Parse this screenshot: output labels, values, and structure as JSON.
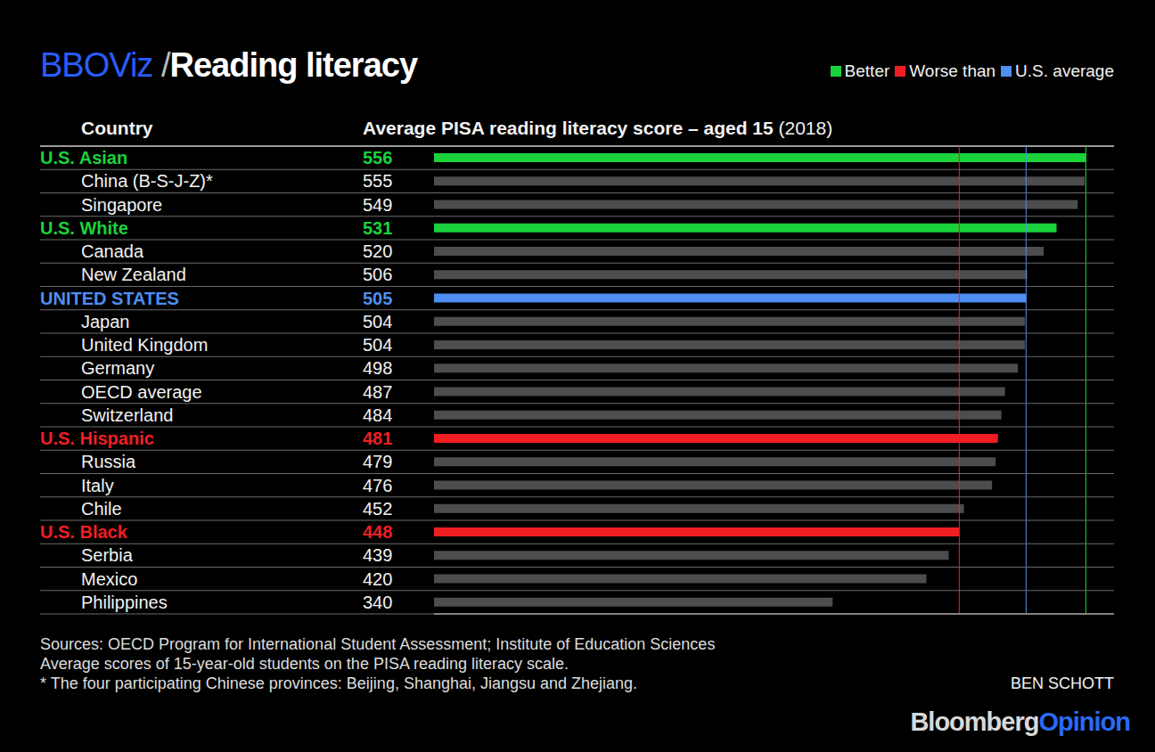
{
  "chart_data": {
    "type": "bar",
    "orientation": "horizontal",
    "brand": "BBOViz",
    "title_separator": "/",
    "title": "Reading literacy",
    "y_label": "Country",
    "x_label": "Average PISA reading literacy score – aged 15",
    "x_label_suffix": "(2018)",
    "legend": "upper right",
    "legend_entries": [
      {
        "label": "Better",
        "color": "#1ad33a"
      },
      {
        "label": "Worse than",
        "color": "#f01e23"
      },
      {
        "label": "U.S. average",
        "color": "#4f8ef2"
      }
    ],
    "categories": [
      "U.S. Asian",
      "China (B-S-J-Z)*",
      "Singapore",
      "U.S. White",
      "Canada",
      "New Zealand",
      "UNITED STATES",
      "Japan",
      "United Kingdom",
      "Germany",
      "OECD average",
      "Switzerland",
      "U.S. Hispanic",
      "Russia",
      "Italy",
      "Chile",
      "U.S. Black",
      "Serbia",
      "Mexico",
      "Philippines"
    ],
    "values": [
      556,
      555,
      549,
      531,
      520,
      506,
      505,
      504,
      504,
      498,
      487,
      484,
      481,
      479,
      476,
      452,
      448,
      439,
      420,
      340
    ],
    "colors": [
      "#1ad33a",
      "#4d4d4d",
      "#4d4d4d",
      "#1ad33a",
      "#4d4d4d",
      "#4d4d4d",
      "#4f8ef2",
      "#4d4d4d",
      "#4d4d4d",
      "#4d4d4d",
      "#4d4d4d",
      "#4d4d4d",
      "#f01e23",
      "#4d4d4d",
      "#4d4d4d",
      "#4d4d4d",
      "#f01e23",
      "#4d4d4d",
      "#4d4d4d",
      "#4d4d4d"
    ],
    "reference_lines": [
      {
        "value": 448,
        "color": "#f01e23"
      },
      {
        "value": 505,
        "color": "#4f8ef2"
      },
      {
        "value": 556,
        "color": "#1ad33a"
      }
    ],
    "xlim": [
      0,
      580
    ],
    "xticks": [],
    "tick_labels": false,
    "data_labels": true,
    "grid": false,
    "notes": [
      "Sources: OECD Program for International Student Assessment; Institute of Education Sciences",
      "Average scores of 15-year-old students on the PISA reading literacy scale.",
      "* The four participating Chinese provinces: Beijing, Shanghai, Jiangsu and Zhejiang."
    ],
    "credit": "BEN SCHOTT",
    "publisher": [
      "Bloomberg",
      "Opinion"
    ]
  }
}
